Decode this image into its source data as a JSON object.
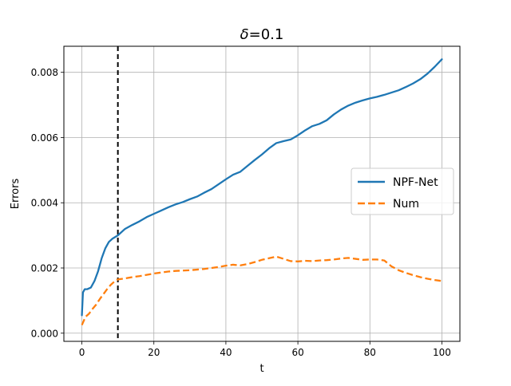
{
  "chart_data": {
    "type": "line",
    "title": {
      "symbol": "δ",
      "rest": "=0.1"
    },
    "xlabel": "t",
    "ylabel": "Errors",
    "xlim": [
      -5,
      105
    ],
    "ylim": [
      -0.00025,
      0.0088
    ],
    "xticks": [
      0,
      20,
      40,
      60,
      80,
      100
    ],
    "xtick_labels": [
      "0",
      "20",
      "40",
      "60",
      "80",
      "100"
    ],
    "yticks": [
      0,
      0.002,
      0.004,
      0.006,
      0.008
    ],
    "ytick_labels": [
      "0.000",
      "0.002",
      "0.004",
      "0.006",
      "0.008"
    ],
    "grid": true,
    "legend_position": "center-right",
    "vline": {
      "x": 10,
      "color": "#000000",
      "style": "dashed"
    },
    "series": [
      {
        "name": "NPF-Net",
        "color": "#1f77b4",
        "style": "solid",
        "x": [
          0,
          0.3,
          0.8,
          1.5,
          2.5,
          3.5,
          4.5,
          5.5,
          6.5,
          7.5,
          8.5,
          10,
          12,
          14,
          16,
          18,
          20,
          22,
          24,
          26,
          28,
          30,
          32,
          34,
          36,
          38,
          40,
          42,
          44,
          46,
          48,
          50,
          52,
          54,
          56,
          58,
          60,
          62,
          64,
          66,
          68,
          70,
          72,
          74,
          76,
          78,
          80,
          82,
          84,
          86,
          88,
          90,
          92,
          94,
          96,
          98,
          100
        ],
        "y": [
          0.00055,
          0.00125,
          0.00135,
          0.00135,
          0.0014,
          0.0016,
          0.0019,
          0.0023,
          0.0026,
          0.0028,
          0.0029,
          0.003,
          0.0032,
          0.00332,
          0.00343,
          0.00356,
          0.00366,
          0.00376,
          0.00386,
          0.00395,
          0.00402,
          0.00411,
          0.00419,
          0.00431,
          0.00442,
          0.00457,
          0.00472,
          0.00486,
          0.00495,
          0.00513,
          0.00531,
          0.00548,
          0.00567,
          0.00583,
          0.00589,
          0.00594,
          0.00607,
          0.00622,
          0.00635,
          0.00642,
          0.00653,
          0.00671,
          0.00686,
          0.00698,
          0.00707,
          0.00714,
          0.0072,
          0.00725,
          0.00731,
          0.00738,
          0.00745,
          0.00755,
          0.00766,
          0.00779,
          0.00796,
          0.00817,
          0.0084
        ]
      },
      {
        "name": "Num",
        "color": "#ff7f0e",
        "style": "dashed",
        "x": [
          0,
          1,
          2,
          3,
          4,
          5,
          6,
          7,
          8,
          9,
          10,
          12,
          14,
          16,
          18,
          20,
          22,
          24,
          26,
          28,
          30,
          32,
          34,
          36,
          38,
          40,
          42,
          44,
          46,
          48,
          50,
          52,
          54,
          56,
          58,
          60,
          62,
          64,
          66,
          68,
          70,
          72,
          74,
          76,
          78,
          80,
          82,
          84,
          86,
          88,
          90,
          92,
          94,
          96,
          98,
          100
        ],
        "y": [
          0.00025,
          0.0005,
          0.0006,
          0.00075,
          0.00088,
          0.00105,
          0.0012,
          0.00135,
          0.00148,
          0.00158,
          0.00165,
          0.00168,
          0.00172,
          0.00175,
          0.00179,
          0.00183,
          0.00186,
          0.00189,
          0.00191,
          0.00192,
          0.00193,
          0.00195,
          0.00197,
          0.002,
          0.00203,
          0.00207,
          0.0021,
          0.00208,
          0.00212,
          0.00218,
          0.00225,
          0.0023,
          0.00235,
          0.00228,
          0.00221,
          0.0022,
          0.00222,
          0.00221,
          0.00223,
          0.00224,
          0.00226,
          0.00229,
          0.00231,
          0.00228,
          0.00225,
          0.00226,
          0.00226,
          0.00223,
          0.00205,
          0.00193,
          0.00185,
          0.00178,
          0.00172,
          0.00167,
          0.00163,
          0.0016
        ]
      }
    ]
  }
}
